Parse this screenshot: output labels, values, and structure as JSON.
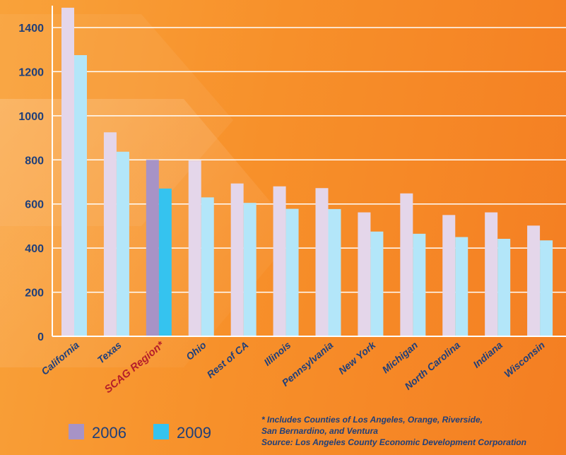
{
  "chart_data": {
    "type": "bar",
    "categories": [
      "California",
      "Texas",
      "SCAG Region*",
      "Ohio",
      "Rest of CA",
      "Illinois",
      "Pennsylvania",
      "New York",
      "Michigan",
      "North Carolina",
      "Indiana",
      "Wisconsin"
    ],
    "highlight_category": "SCAG Region*",
    "series": [
      {
        "name": "2006",
        "values": [
          1490,
          925,
          800,
          797,
          693,
          680,
          672,
          562,
          648,
          550,
          562,
          502
        ],
        "color": "#e4d6ea",
        "highlight_color": "#a793c6"
      },
      {
        "name": "2009",
        "values": [
          1275,
          837,
          670,
          630,
          605,
          578,
          577,
          475,
          465,
          450,
          442,
          435
        ],
        "color": "#b3e6f9",
        "highlight_color": "#35c3ef"
      }
    ],
    "yticks": [
      0,
      200,
      400,
      600,
      800,
      1000,
      1200,
      1400
    ],
    "ylim": [
      0,
      1500
    ],
    "grid": true,
    "legend_position": "bottom-left"
  },
  "footnote": {
    "line1": "* Includes Counties of Los Angeles, Orange, Riverside,",
    "line2": "San Bernardino, and Ventura",
    "source": "Source: Los Angeles County Economic Development Corporation"
  },
  "colors": {
    "axis": "#ffffff",
    "text": "#1f3f7a",
    "highlight_text": "#b51e2a"
  }
}
